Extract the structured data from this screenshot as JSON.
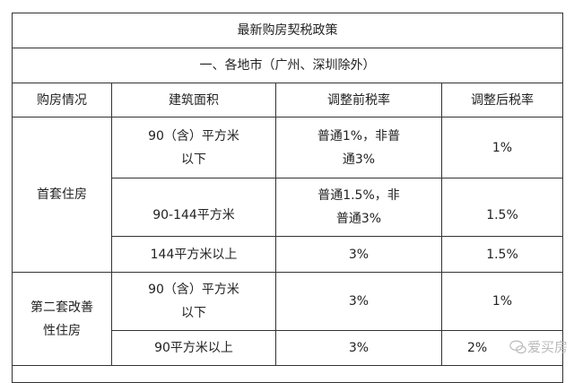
{
  "title": "最新购房契税政策",
  "section": "一、各地市（广州、深圳除外）",
  "headers": [
    "购房情况",
    "建筑面积",
    "调整前税率",
    "调整后税率"
  ],
  "groups": [
    {
      "label": "首套住房",
      "rows": [
        {
          "area": "90（含）平方米以下",
          "before": "普通1%，非普通3%",
          "after": "1%"
        },
        {
          "area": "90-144平方米",
          "before": "普通1.5%，非普通3%",
          "after": "1.5%"
        },
        {
          "area": "144平方米以上",
          "before": "3%",
          "after": "1.5%"
        }
      ]
    },
    {
      "label": "第二套改善性住房",
      "rows": [
        {
          "area": "90（含）平方米以下",
          "before": "3%",
          "after": "1%"
        },
        {
          "area": "90平方米以上",
          "before": "3%",
          "after": "2%"
        }
      ]
    }
  ],
  "watermark": {
    "text": "爱买房",
    "icon": "wechat-chat-icon"
  }
}
